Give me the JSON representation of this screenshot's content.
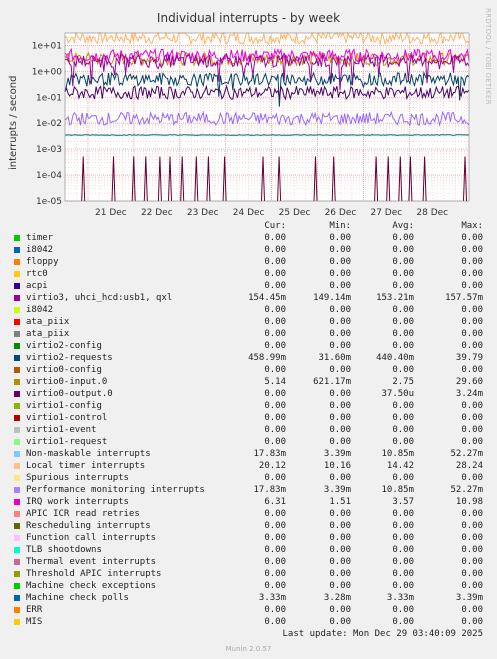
{
  "title": "Individual interrupts - by week",
  "side_label": "RRDTOOL / TOBI OETIKER",
  "footer": {
    "last_update": "Last update: Mon Dec 29 03:40:09 2025",
    "version": "Munin 2.0.57"
  },
  "chart_data": {
    "type": "line",
    "title": "Individual interrupts - by week",
    "ylabel": "interrupts / second",
    "y_scale": "log",
    "ylim": [
      1e-05,
      30
    ],
    "y_ticks": [
      "1e+01",
      "1e+00",
      "1e-01",
      "1e-02",
      "1e-03",
      "1e-04",
      "1e-05"
    ],
    "y_tick_values": [
      10,
      1,
      0.1,
      0.01,
      0.001,
      0.0001,
      1e-05
    ],
    "x_ticks": [
      "21 Dec",
      "22 Dec",
      "23 Dec",
      "24 Dec",
      "25 Dec",
      "26 Dec",
      "27 Dec",
      "28 Dec"
    ],
    "grid": true,
    "series": [
      {
        "name": "Local timer interrupts",
        "color": "#ffb266",
        "approx": 20
      },
      {
        "name": "virtio0-input.0",
        "color": "#cc8a00",
        "approx": 3
      },
      {
        "name": "IRQ work interrupts",
        "color": "#e600e6",
        "approx": 4
      },
      {
        "name": "virtio3, uhci_hcd:usb1, qxl",
        "color": "#990099",
        "approx": 2.5
      },
      {
        "name": "Machine check polls",
        "color": "#004466",
        "approx": 0.5
      },
      {
        "name": "virtio0-output.0",
        "color": "#4d0066",
        "approx": 0.15
      },
      {
        "name": "Performance monitoring interrupts",
        "color": "#9966ff",
        "approx": 0.015
      },
      {
        "name": "Machine check exceptions",
        "color": "#006666",
        "approx": 0.0035
      },
      {
        "name": "ERR",
        "color": "#660033",
        "spikes": true
      }
    ]
  },
  "legend": {
    "headers": [
      "Cur:",
      "Min:",
      "Avg:",
      "Max:"
    ],
    "rows": [
      {
        "name": "timer",
        "color": "#00cc00",
        "cur": "0.00",
        "min": "0.00",
        "avg": "0.00",
        "max": "0.00"
      },
      {
        "name": "i8042",
        "color": "#0066b3",
        "cur": "0.00",
        "min": "0.00",
        "avg": "0.00",
        "max": "0.00"
      },
      {
        "name": "floppy",
        "color": "#ff8000",
        "cur": "0.00",
        "min": "0.00",
        "avg": "0.00",
        "max": "0.00"
      },
      {
        "name": "rtc0",
        "color": "#ffcc00",
        "cur": "0.00",
        "min": "0.00",
        "avg": "0.00",
        "max": "0.00"
      },
      {
        "name": "acpi",
        "color": "#330099",
        "cur": "0.00",
        "min": "0.00",
        "avg": "0.00",
        "max": "0.00"
      },
      {
        "name": "virtio3, uhci_hcd:usb1, qxl",
        "color": "#990099",
        "cur": "154.45m",
        "min": "149.14m",
        "avg": "153.21m",
        "max": "157.57m"
      },
      {
        "name": "i8042",
        "color": "#ccff00",
        "cur": "0.00",
        "min": "0.00",
        "avg": "0.00",
        "max": "0.00"
      },
      {
        "name": "ata_piix",
        "color": "#ff0000",
        "cur": "0.00",
        "min": "0.00",
        "avg": "0.00",
        "max": "0.00"
      },
      {
        "name": "ata_piix",
        "color": "#808080",
        "cur": "0.00",
        "min": "0.00",
        "avg": "0.00",
        "max": "0.00"
      },
      {
        "name": "virtio2-config",
        "color": "#008f00",
        "cur": "0.00",
        "min": "0.00",
        "avg": "0.00",
        "max": "0.00"
      },
      {
        "name": "virtio2-requests",
        "color": "#00487d",
        "cur": "458.99m",
        "min": "31.60m",
        "avg": "440.40m",
        "max": "39.79"
      },
      {
        "name": "virtio0-config",
        "color": "#b35a00",
        "cur": "0.00",
        "min": "0.00",
        "avg": "0.00",
        "max": "0.00"
      },
      {
        "name": "virtio0-input.0",
        "color": "#b38f00",
        "cur": "5.14",
        "min": "621.17m",
        "avg": "2.75",
        "max": "29.60"
      },
      {
        "name": "virtio0-output.0",
        "color": "#6b006b",
        "cur": "0.00",
        "min": "0.00",
        "avg": "37.50u",
        "max": "3.24m"
      },
      {
        "name": "virtio1-config",
        "color": "#8fb300",
        "cur": "0.00",
        "min": "0.00",
        "avg": "0.00",
        "max": "0.00"
      },
      {
        "name": "virtio1-control",
        "color": "#b30000",
        "cur": "0.00",
        "min": "0.00",
        "avg": "0.00",
        "max": "0.00"
      },
      {
        "name": "virtio1-event",
        "color": "#bebebe",
        "cur": "0.00",
        "min": "0.00",
        "avg": "0.00",
        "max": "0.00"
      },
      {
        "name": "virtio1-request",
        "color": "#80ff80",
        "cur": "0.00",
        "min": "0.00",
        "avg": "0.00",
        "max": "0.00"
      },
      {
        "name": "Non-maskable interrupts",
        "color": "#80c9ff",
        "cur": "17.83m",
        "min": "3.39m",
        "avg": "10.85m",
        "max": "52.27m"
      },
      {
        "name": "Local timer interrupts",
        "color": "#ffc080",
        "cur": "20.12",
        "min": "10.16",
        "avg": "14.42",
        "max": "28.24"
      },
      {
        "name": "Spurious interrupts",
        "color": "#ffe680",
        "cur": "0.00",
        "min": "0.00",
        "avg": "0.00",
        "max": "0.00"
      },
      {
        "name": "Performance monitoring interrupts",
        "color": "#aa80ff",
        "cur": "17.83m",
        "min": "3.39m",
        "avg": "10.85m",
        "max": "52.27m"
      },
      {
        "name": "IRQ work interrupts",
        "color": "#ee00cc",
        "cur": "6.31",
        "min": "1.51",
        "avg": "3.57",
        "max": "10.98"
      },
      {
        "name": "APIC ICR read retries",
        "color": "#ff8080",
        "cur": "0.00",
        "min": "0.00",
        "avg": "0.00",
        "max": "0.00"
      },
      {
        "name": "Rescheduling interrupts",
        "color": "#666600",
        "cur": "0.00",
        "min": "0.00",
        "avg": "0.00",
        "max": "0.00"
      },
      {
        "name": "Function call interrupts",
        "color": "#ffbfff",
        "cur": "0.00",
        "min": "0.00",
        "avg": "0.00",
        "max": "0.00"
      },
      {
        "name": "TLB shootdowns",
        "color": "#00ffcc",
        "cur": "0.00",
        "min": "0.00",
        "avg": "0.00",
        "max": "0.00"
      },
      {
        "name": "Thermal event interrupts",
        "color": "#cc6699",
        "cur": "0.00",
        "min": "0.00",
        "avg": "0.00",
        "max": "0.00"
      },
      {
        "name": "Threshold APIC interrupts",
        "color": "#999900",
        "cur": "0.00",
        "min": "0.00",
        "avg": "0.00",
        "max": "0.00"
      },
      {
        "name": "Machine check exceptions",
        "color": "#00cc00",
        "cur": "0.00",
        "min": "0.00",
        "avg": "0.00",
        "max": "0.00"
      },
      {
        "name": "Machine check polls",
        "color": "#0066b3",
        "cur": "3.33m",
        "min": "3.28m",
        "avg": "3.33m",
        "max": "3.39m"
      },
      {
        "name": "ERR",
        "color": "#ff8000",
        "cur": "0.00",
        "min": "0.00",
        "avg": "0.00",
        "max": "0.00"
      },
      {
        "name": "MIS",
        "color": "#ffcc00",
        "cur": "0.00",
        "min": "0.00",
        "avg": "0.00",
        "max": "0.00"
      }
    ]
  }
}
